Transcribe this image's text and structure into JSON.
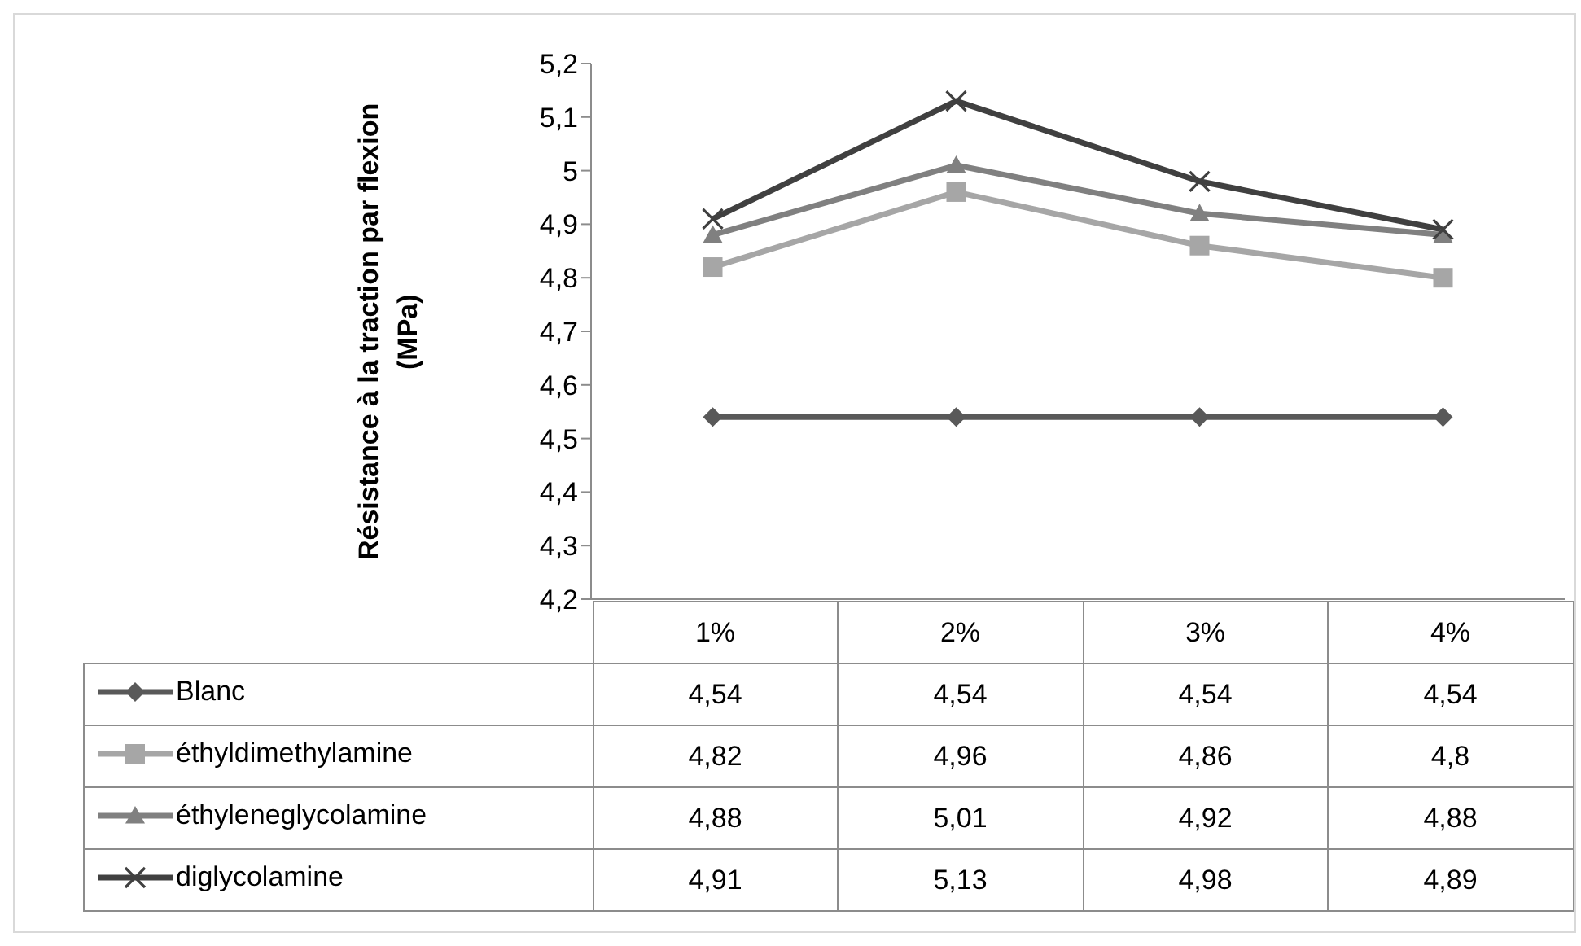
{
  "chart_data": {
    "type": "line",
    "ylabel": "Résistance à la traction par flexion (MPa)",
    "categories": [
      "1%",
      "2%",
      "3%",
      "4%"
    ],
    "ylim": [
      4.2,
      5.2
    ],
    "yticks": [
      {
        "value": 4.2,
        "label": "4,2"
      },
      {
        "value": 4.3,
        "label": "4,3"
      },
      {
        "value": 4.4,
        "label": "4,4"
      },
      {
        "value": 4.5,
        "label": "4,5"
      },
      {
        "value": 4.6,
        "label": "4,6"
      },
      {
        "value": 4.7,
        "label": "4,7"
      },
      {
        "value": 4.8,
        "label": "4,8"
      },
      {
        "value": 4.9,
        "label": "4,9"
      },
      {
        "value": 5,
        "label": "5"
      },
      {
        "value": 5.1,
        "label": "5,1"
      },
      {
        "value": 5.2,
        "label": "5,2"
      }
    ],
    "legend": "bottom",
    "series": [
      {
        "name": "Blanc",
        "color": "#595959",
        "marker": "diamond",
        "values": [
          4.54,
          4.54,
          4.54,
          4.54
        ],
        "value_labels": [
          "4,54",
          "4,54",
          "4,54",
          "4,54"
        ]
      },
      {
        "name": "éthyldimethylamine",
        "color": "#a6a6a6",
        "marker": "square",
        "values": [
          4.82,
          4.96,
          4.86,
          4.8
        ],
        "value_labels": [
          "4,82",
          "4,96",
          "4,86",
          "4,8"
        ]
      },
      {
        "name": "éthyleneglycolamine",
        "color": "#808080",
        "marker": "triangle",
        "values": [
          4.88,
          5.01,
          4.92,
          4.88
        ],
        "value_labels": [
          "4,88",
          "5,01",
          "4,92",
          "4,88"
        ]
      },
      {
        "name": "diglycolamine",
        "color": "#404040",
        "marker": "cross",
        "values": [
          4.91,
          5.13,
          4.98,
          4.89
        ],
        "value_labels": [
          "4,91",
          "5,13",
          "4,98",
          "4,89"
        ]
      }
    ]
  }
}
